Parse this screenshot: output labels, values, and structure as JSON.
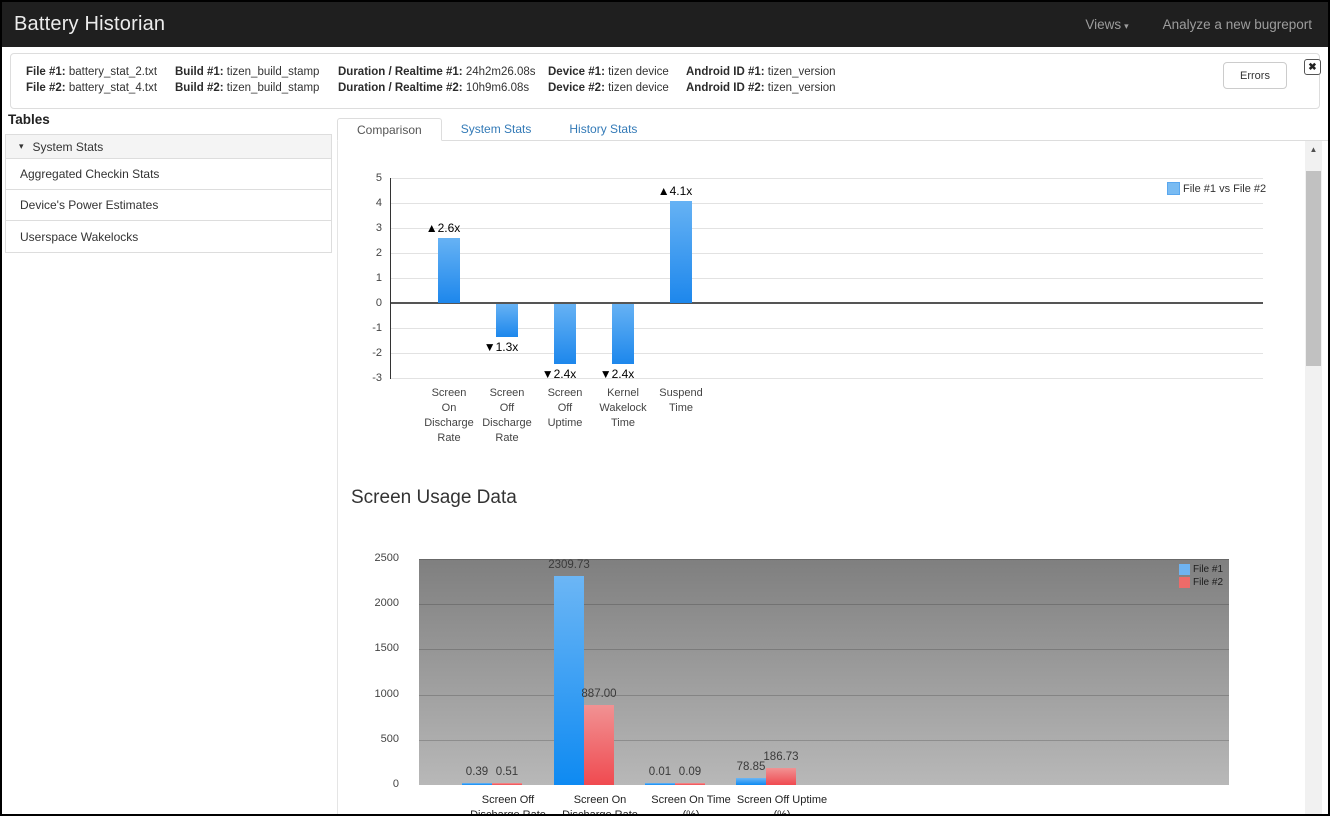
{
  "navbar": {
    "brand": "Battery Historian",
    "views_label": "Views",
    "analyze_label": "Analyze a new bugreport"
  },
  "icons": {
    "caret_down": "▾",
    "close": "✖",
    "scroll_up": "▲",
    "group_caret": "▾"
  },
  "info_bar": {
    "columns": [
      {
        "rows": [
          {
            "label": "File #1:",
            "value": "battery_stat_2.txt"
          },
          {
            "label": "File #2:",
            "value": "battery_stat_4.txt"
          }
        ]
      },
      {
        "rows": [
          {
            "label": "Build #1:",
            "value": "tizen_build_stamp"
          },
          {
            "label": "Build #2:",
            "value": "tizen_build_stamp"
          }
        ]
      },
      {
        "rows": [
          {
            "label": "Duration / Realtime #1:",
            "value": "24h2m26.08s"
          },
          {
            "label": "Duration / Realtime #2:",
            "value": "10h9m6.08s"
          }
        ]
      },
      {
        "rows": [
          {
            "label": "Device #1:",
            "value": "tizen device"
          },
          {
            "label": "Device #2:",
            "value": "tizen device"
          }
        ]
      },
      {
        "rows": [
          {
            "label": "Android ID #1:",
            "value": "tizen_version"
          },
          {
            "label": "Android ID #2:",
            "value": "tizen_version"
          }
        ]
      }
    ],
    "errors_button": "Errors"
  },
  "sidebar": {
    "title": "Tables",
    "group_label": "System Stats",
    "items": [
      "Aggregated Checkin Stats",
      "Device's Power Estimates",
      "Userspace Wakelocks"
    ]
  },
  "tabs": [
    {
      "label": "Comparison",
      "active": true
    },
    {
      "label": "System Stats",
      "active": false
    },
    {
      "label": "History Stats",
      "active": false
    }
  ],
  "section_title": "Screen Usage Data",
  "chart_data": [
    {
      "type": "bar",
      "name": "comparison-multiplier-chart",
      "categories": [
        "Screen On Discharge Rate",
        "Screen Off Discharge Rate",
        "Screen Off Uptime",
        "Kernel Wakelock Time",
        "Suspend Time"
      ],
      "category_lines": [
        [
          "Screen",
          "On",
          "Discharge",
          "Rate"
        ],
        [
          "Screen",
          "Off",
          "Discharge",
          "Rate"
        ],
        [
          "Screen",
          "Off",
          "Uptime"
        ],
        [
          "Kernel",
          "Wakelock",
          "Time"
        ],
        [
          "Suspend",
          "Time"
        ]
      ],
      "values": [
        2.6,
        -1.3,
        -2.4,
        -2.4,
        4.1
      ],
      "annotations": [
        "▲2.6x",
        "▼1.3x",
        "▼2.4x",
        "▼2.4x",
        "▲4.1x"
      ],
      "legend": [
        "File #1 vs File #2"
      ],
      "legend_position": "top-right",
      "ylim": [
        -3,
        5
      ],
      "ytick_step": 1,
      "grid": true,
      "bar_color": "#2b96f1"
    },
    {
      "type": "bar",
      "name": "screen-usage-data-chart",
      "title": "Screen Usage Data",
      "categories": [
        "Screen Off Discharge Rate",
        "Screen On Discharge Rate",
        "Screen On Time (%)",
        "Screen Off Uptime (%)"
      ],
      "category_lines": [
        [
          "Screen Off",
          "Discharge Rate"
        ],
        [
          "Screen On",
          "Discharge Rate"
        ],
        [
          "Screen On Time",
          "(%)"
        ],
        [
          "Screen Off Uptime",
          "(%)"
        ]
      ],
      "series": [
        {
          "name": "File #1",
          "color": "#2196f3",
          "values": [
            0.39,
            2309.73,
            0.01,
            78.85
          ]
        },
        {
          "name": "File #2",
          "color": "#ef5350",
          "values": [
            0.51,
            887.0,
            0.09,
            186.73
          ]
        }
      ],
      "ylim": [
        0,
        2500
      ],
      "ytick_step": 500,
      "grid": true,
      "legend_position": "top-right",
      "plot_background": "gray-gradient"
    }
  ],
  "colors": {
    "navbar_bg": "#1f1f1f",
    "navbar_text": "#9d9d9d",
    "link_blue": "#337ab7",
    "file1_blue": "#2196f3",
    "file2_red": "#ef5350",
    "legend_blue": "#79bbf2"
  }
}
